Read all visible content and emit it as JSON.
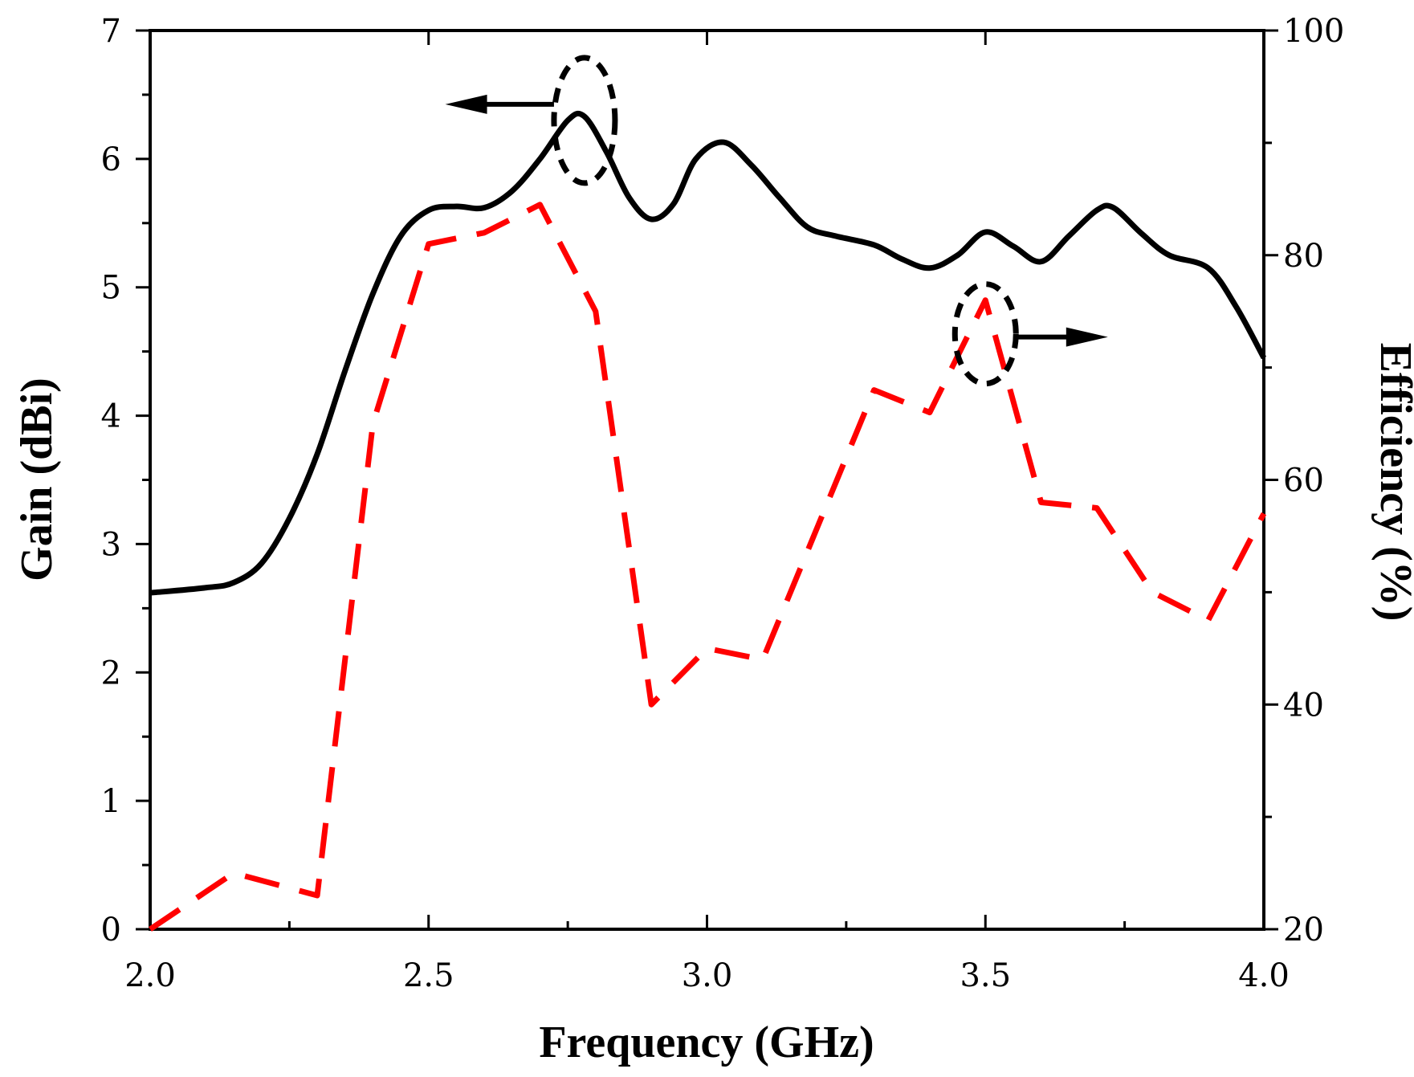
{
  "chart_data": {
    "type": "line",
    "xlabel": "Frequency (GHz)",
    "ylabel_left": "Gain (dBi)",
    "ylabel_right": "Efficiency (%)",
    "xlim": [
      2.0,
      4.0
    ],
    "ylim_left": [
      0,
      7
    ],
    "ylim_right": [
      20,
      100
    ],
    "x_ticks": [
      2.0,
      2.5,
      3.0,
      3.5,
      4.0
    ],
    "x_tick_labels": [
      "2.0",
      "2.5",
      "3.0",
      "3.5",
      "4.0"
    ],
    "y_ticks_left": [
      0,
      1,
      2,
      3,
      4,
      5,
      6,
      7
    ],
    "y_tick_labels_left": [
      "0",
      "1",
      "2",
      "3",
      "4",
      "5",
      "6",
      "7"
    ],
    "y_ticks_right": [
      20,
      40,
      60,
      80,
      100
    ],
    "y_tick_labels_right": [
      "20",
      "40",
      "60",
      "80",
      "100"
    ],
    "series": [
      {
        "name": "Gain",
        "axis": "left",
        "color": "#000000",
        "style": "solid",
        "x": [
          2.0,
          2.1,
          2.15,
          2.2,
          2.25,
          2.3,
          2.35,
          2.4,
          2.45,
          2.5,
          2.55,
          2.6,
          2.65,
          2.7,
          2.75,
          2.78,
          2.82,
          2.86,
          2.9,
          2.94,
          2.98,
          3.03,
          3.08,
          3.13,
          3.18,
          3.23,
          3.3,
          3.35,
          3.4,
          3.45,
          3.5,
          3.55,
          3.6,
          3.65,
          3.7,
          3.73,
          3.78,
          3.83,
          3.9,
          3.95,
          4.0
        ],
        "values": [
          2.62,
          2.66,
          2.7,
          2.85,
          3.2,
          3.7,
          4.35,
          4.95,
          5.4,
          5.6,
          5.63,
          5.62,
          5.75,
          6.0,
          6.3,
          6.33,
          6.05,
          5.7,
          5.53,
          5.65,
          6.0,
          6.13,
          5.95,
          5.7,
          5.47,
          5.4,
          5.33,
          5.22,
          5.15,
          5.25,
          5.43,
          5.32,
          5.2,
          5.4,
          5.6,
          5.62,
          5.42,
          5.25,
          5.15,
          4.85,
          4.45
        ]
      },
      {
        "name": "Efficiency",
        "axis": "right",
        "color": "#ff0000",
        "style": "dashed",
        "x": [
          2.0,
          2.15,
          2.3,
          2.4,
          2.5,
          2.6,
          2.7,
          2.8,
          2.9,
          3.0,
          3.1,
          3.3,
          3.4,
          3.5,
          3.6,
          3.7,
          3.8,
          3.9,
          4.0
        ],
        "values": [
          20,
          25,
          23,
          65,
          81,
          82,
          84.5,
          75,
          40,
          45,
          44,
          68,
          66,
          76,
          58,
          57.5,
          50,
          47.5,
          57
        ]
      }
    ],
    "annotations": [
      {
        "type": "ellipse",
        "around": "Gain peak",
        "x": 2.78,
        "y_left": 6.3
      },
      {
        "type": "arrow",
        "direction": "left",
        "meaning": "Gain on left axis"
      },
      {
        "type": "ellipse",
        "around": "Efficiency peak",
        "x": 3.5,
        "y_right": 73
      },
      {
        "type": "arrow",
        "direction": "right",
        "meaning": "Efficiency on right axis"
      }
    ]
  }
}
